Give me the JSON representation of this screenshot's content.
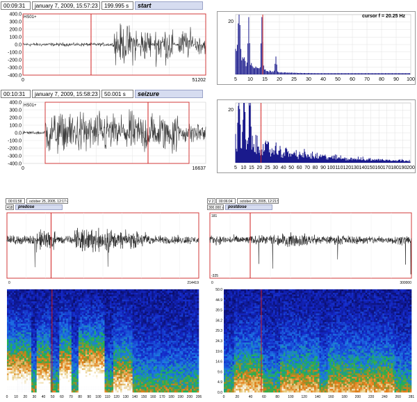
{
  "top_windows": [
    {
      "time": "00:09:31",
      "date": "january  7, 2009, 15:57:23",
      "duration": "199.995 s",
      "label": "start",
      "channel": "HS01+",
      "yticks": [
        "400.0",
        "300.0",
        "200.0",
        "100.0",
        "0.0",
        "-100.0",
        "-200.0",
        "-300.0",
        "-400.0"
      ],
      "x_start": "0",
      "x_end": "51202",
      "spectrum_xticks": [
        "5",
        "10",
        "15",
        "20",
        "25",
        "30",
        "40",
        "50",
        "60",
        "70",
        "80",
        "90",
        "100"
      ],
      "spectrum_yticks": [
        "20"
      ],
      "cursor": "cursor f =  20.25 Hz"
    },
    {
      "time": "00:10:31",
      "date": "january  7, 2009, 15:58:23",
      "duration": "50.001 s",
      "label": "seizure",
      "channel": "HS01+",
      "yticks": [
        "400.0",
        "300.0",
        "200.0",
        "100.0",
        "0.0",
        "-100.0",
        "-200.0",
        "-300.0",
        "-400.0"
      ],
      "x_start": "0",
      "x_end": "16637",
      "spectrum_xticks": [
        "5",
        "10",
        "15",
        "20",
        "25",
        "30",
        "40",
        "50",
        "60",
        "70",
        "80",
        "90",
        "100",
        "110",
        "120",
        "130",
        "140",
        "150",
        "160",
        "170",
        "180",
        "190",
        "200"
      ],
      "spectrum_yticks": [
        "20"
      ]
    }
  ],
  "bottom_windows": [
    {
      "time": "00:01:58",
      "date": "october 25, 2005, 12:17:48",
      "duration": "418 s",
      "label": "predose",
      "x_start": "0",
      "x_end": "214419",
      "spec_xticks": [
        "0",
        "10",
        "20",
        "30",
        "40",
        "50",
        "60",
        "70",
        "80",
        "90",
        "100",
        "110",
        "120",
        "130",
        "140",
        "150",
        "160",
        "170",
        "180",
        "190",
        "200",
        "206"
      ]
    },
    {
      "time": "00:06:04",
      "date": "october 25, 2005, 12:21:54",
      "duration": "300.000 s",
      "channel_prefix": "V 2",
      "label": "postdose",
      "y_top": "181",
      "y_bottom": "-325",
      "x_start": "0",
      "x_end": "300000",
      "spec_yticks": [
        "50.0",
        "44.9",
        "39.5",
        "34.2",
        "29.3",
        "24.3",
        "19.6",
        "14.6",
        "9.6",
        "4.9",
        "0.0"
      ],
      "spec_xticks": [
        "0",
        "20",
        "40",
        "60",
        "80",
        "100",
        "120",
        "140",
        "160",
        "180",
        "200",
        "220",
        "240",
        "260",
        "281"
      ]
    }
  ],
  "colors": {
    "trace": "#3a3a3a",
    "spectrum": "#1a1a8c",
    "cursor": "#d21e1e",
    "header_label_bg": "#d6dcf0"
  }
}
